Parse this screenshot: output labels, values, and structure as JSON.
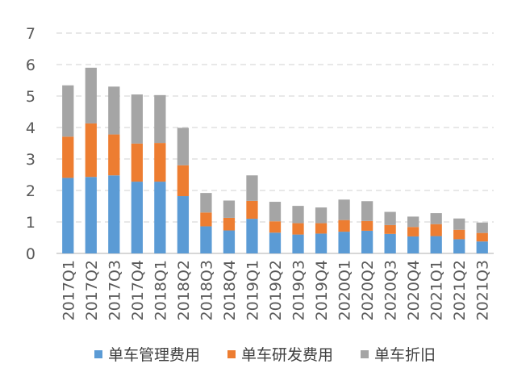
{
  "chart_data": {
    "type": "bar",
    "stacked": true,
    "categories": [
      "2017Q1",
      "2017Q2",
      "2017Q3",
      "2017Q4",
      "2018Q1",
      "2018Q2",
      "2018Q3",
      "2018Q4",
      "2019Q1",
      "2019Q2",
      "2019Q3",
      "2019Q4",
      "2020Q1",
      "2020Q2",
      "2020Q3",
      "2020Q4",
      "2021Q1",
      "2021Q2",
      "2021Q3"
    ],
    "series": [
      {
        "name": "单车管理费用",
        "color": "#5B9BD5",
        "values": [
          2.4,
          2.43,
          2.48,
          2.28,
          2.28,
          1.82,
          0.86,
          0.73,
          1.1,
          0.66,
          0.6,
          0.63,
          0.69,
          0.72,
          0.62,
          0.54,
          0.55,
          0.45,
          0.38
        ]
      },
      {
        "name": "单车研发费用",
        "color": "#ED7D31",
        "values": [
          1.31,
          1.7,
          1.3,
          1.21,
          1.23,
          0.98,
          0.44,
          0.4,
          0.57,
          0.36,
          0.36,
          0.33,
          0.37,
          0.31,
          0.28,
          0.3,
          0.38,
          0.3,
          0.27
        ]
      },
      {
        "name": "单车折旧",
        "color": "#A5A5A5",
        "values": [
          1.63,
          1.77,
          1.52,
          1.56,
          1.52,
          1.19,
          0.62,
          0.55,
          0.81,
          0.62,
          0.55,
          0.5,
          0.65,
          0.63,
          0.42,
          0.33,
          0.35,
          0.36,
          0.33
        ]
      }
    ],
    "yticks": [
      "0",
      "1",
      "2",
      "3",
      "4",
      "5",
      "6",
      "7"
    ],
    "ylim": [
      0,
      7
    ],
    "grid": true,
    "legend_position": "bottom"
  }
}
